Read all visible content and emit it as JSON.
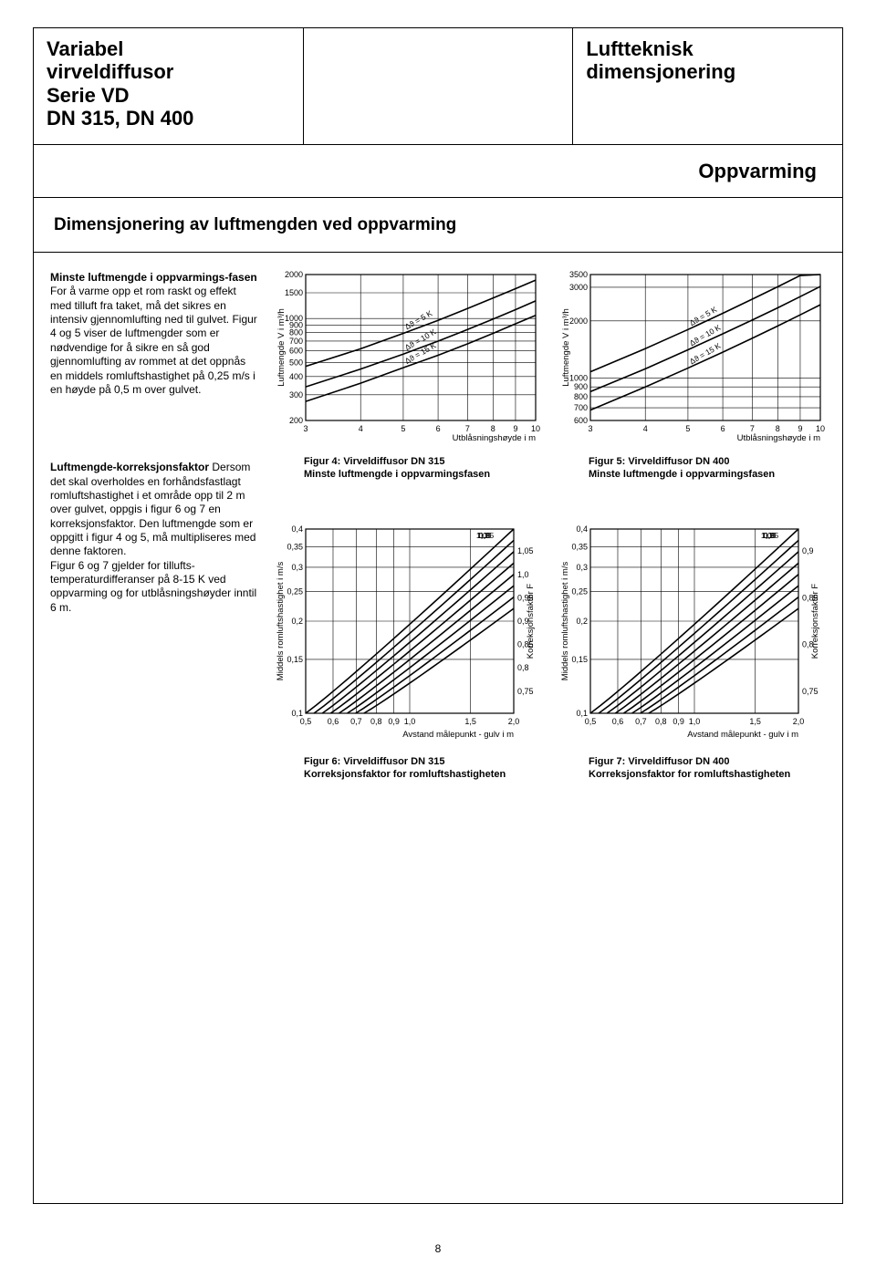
{
  "header": {
    "left": "Variabel\nvirveldiffusor\nSerie VD\nDN 315, DN 400",
    "right": "Luftteknisk\ndimensjonering",
    "sub": "Oppvarming"
  },
  "section_title": "Dimensjonering av luftmengden ved oppvarming",
  "para1": {
    "title": "Minste luftmengde i oppvarmings-fasen",
    "body": "For å varme opp et rom raskt og effekt med tilluft fra taket, må det sikres en intensiv gjennomlufting ned til gulvet. Figur 4 og 5 viser de luftmengder som er nødvendige for å sikre en så god gjennomlufting av rommet at det oppnås en middels romluftshastighet på 0,25 m/s i en høyde på 0,5 m over gulvet."
  },
  "para2": {
    "title": "Luftmengde-korreksjonsfaktor",
    "body": "Dersom det skal overholdes en forhåndsfastlagt romluftshastighet i et område opp til 2 m over gulvet, oppgis i figur 6 og 7 en korreksjonsfaktor. Den luftmengde som er oppgitt i figur 4 og 5, må multipliseres med denne faktoren.\nFigur 6 og 7 gjelder for tillufts-temperaturdifferanser på 8-15 K ved oppvarming og for utblåsningshøyder inntil 6 m."
  },
  "fig4": {
    "caption_l1": "Figur 4: Virveldiffusor DN 315",
    "caption_l2": "Minste luftmengde i oppvarmingsfasen",
    "ylabel": "Luftmengde V i m³/h",
    "xlabel": "Utblåsningshøyde i m",
    "yticks": [
      "200",
      "300",
      "400",
      "500",
      "600",
      "700",
      "800",
      "900",
      "1000",
      "1500",
      "2000"
    ],
    "xticks": [
      "3",
      "4",
      "5",
      "6",
      "7",
      "8",
      "9",
      "10"
    ],
    "curves": [
      {
        "label": "Δϑ = 15 K",
        "points": [
          [
            3,
            270
          ],
          [
            4,
            360
          ],
          [
            5,
            460
          ],
          [
            6,
            560
          ],
          [
            7,
            670
          ],
          [
            8,
            790
          ],
          [
            9,
            920
          ],
          [
            10,
            1050
          ]
        ]
      },
      {
        "label": "Δϑ = 10 K",
        "points": [
          [
            3,
            340
          ],
          [
            4,
            450
          ],
          [
            5,
            570
          ],
          [
            6,
            700
          ],
          [
            7,
            840
          ],
          [
            8,
            990
          ],
          [
            9,
            1150
          ],
          [
            10,
            1320
          ]
        ]
      },
      {
        "label": "Δϑ = 5 K",
        "points": [
          [
            3,
            470
          ],
          [
            4,
            620
          ],
          [
            5,
            790
          ],
          [
            6,
            970
          ],
          [
            7,
            1170
          ],
          [
            8,
            1380
          ],
          [
            9,
            1600
          ],
          [
            10,
            1830
          ]
        ]
      }
    ],
    "ymin": 200,
    "ymax": 2000,
    "xmin": 3,
    "xmax": 10
  },
  "fig5": {
    "caption_l1": "Figur 5: Virveldiffusor DN 400",
    "caption_l2": "Minste luftmengde i oppvarmingsfasen",
    "ylabel": "Luftmengde V i m³/h",
    "xlabel": "Utblåsningshøyde i m",
    "yticks": [
      "600",
      "700",
      "800",
      "900",
      "1000",
      "2000",
      "3000",
      "3500"
    ],
    "xticks": [
      "3",
      "4",
      "5",
      "6",
      "7",
      "8",
      "9",
      "10"
    ],
    "curves": [
      {
        "label": "Δϑ = 15 K",
        "points": [
          [
            3,
            680
          ],
          [
            4,
            900
          ],
          [
            5,
            1130
          ],
          [
            6,
            1370
          ],
          [
            7,
            1620
          ],
          [
            8,
            1880
          ],
          [
            9,
            2150
          ],
          [
            10,
            2430
          ]
        ]
      },
      {
        "label": "Δϑ = 10 K",
        "points": [
          [
            3,
            850
          ],
          [
            4,
            1120
          ],
          [
            5,
            1410
          ],
          [
            6,
            1710
          ],
          [
            7,
            2020
          ],
          [
            8,
            2340
          ],
          [
            9,
            2680
          ],
          [
            10,
            3030
          ]
        ]
      },
      {
        "label": "Δϑ = 5 K",
        "points": [
          [
            3,
            1080
          ],
          [
            4,
            1430
          ],
          [
            5,
            1800
          ],
          [
            6,
            2190
          ],
          [
            7,
            2600
          ],
          [
            8,
            3020
          ],
          [
            9,
            3460
          ],
          [
            10,
            3500
          ]
        ]
      }
    ],
    "ymin": 600,
    "ymax": 3500,
    "xmin": 3,
    "xmax": 10
  },
  "fig6": {
    "caption_l1": "Figur 6: Virveldiffusor DN 315",
    "caption_l2": "Korreksjonsfaktor for romluftshastigheten",
    "ylabel": "Middels romluftshastighet i m/s",
    "xlabel": "Avstand målepunkt - gulv i m",
    "y2label": "Korreksjonsfaktor F",
    "yticks": [
      "0,1",
      "0,15",
      "0,2",
      "0,25",
      "0,3",
      "0,35",
      "0,4"
    ],
    "y2ticks": [
      "0,75",
      "0,8",
      "0,85",
      "0,9",
      "0,95",
      "1,0",
      "1,05"
    ],
    "xticks": [
      "0,5",
      "0,6",
      "0,7",
      "0,8",
      "0,9",
      "1,0",
      "1,5",
      "2,0"
    ],
    "iso": [
      "1,1",
      "1,05",
      "1,0",
      "0,95",
      "0,9",
      "0,85",
      "0,8",
      "0,75"
    ],
    "ymin": 0.1,
    "ymax": 0.4,
    "xmin": 0.5,
    "xmax": 2.0
  },
  "fig7": {
    "caption_l1": "Figur 7: Virveldiffusor DN 400",
    "caption_l2": "Korreksjonsfaktor for romluftshastigheten",
    "ylabel": "Middels romluftshastighet i m/s",
    "xlabel": "Avstand målepunkt - gulv i m",
    "y2label": "Korreksjonsfaktor F",
    "yticks": [
      "0,1",
      "0,15",
      "0,2",
      "0,25",
      "0,3",
      "0,35",
      "0,4"
    ],
    "y2ticks": [
      "0,75",
      "0,8",
      "0,85",
      "0,9"
    ],
    "xticks": [
      "0,5",
      "0,6",
      "0,7",
      "0,8",
      "0,9",
      "1,0",
      "1,5",
      "2,0"
    ],
    "iso": [
      "1,1",
      "1,05",
      "1,0",
      "0,95",
      "0,9",
      "0,85",
      "0,8",
      "0,75"
    ],
    "ymin": 0.1,
    "ymax": 0.4,
    "xmin": 0.5,
    "xmax": 2.0
  },
  "styling": {
    "line_color": "#000000",
    "grid_color": "#000000",
    "grid_width": 0.6,
    "curve_width": 1.6,
    "font_tick": 9,
    "bg": "#ffffff"
  },
  "page_number": "8"
}
